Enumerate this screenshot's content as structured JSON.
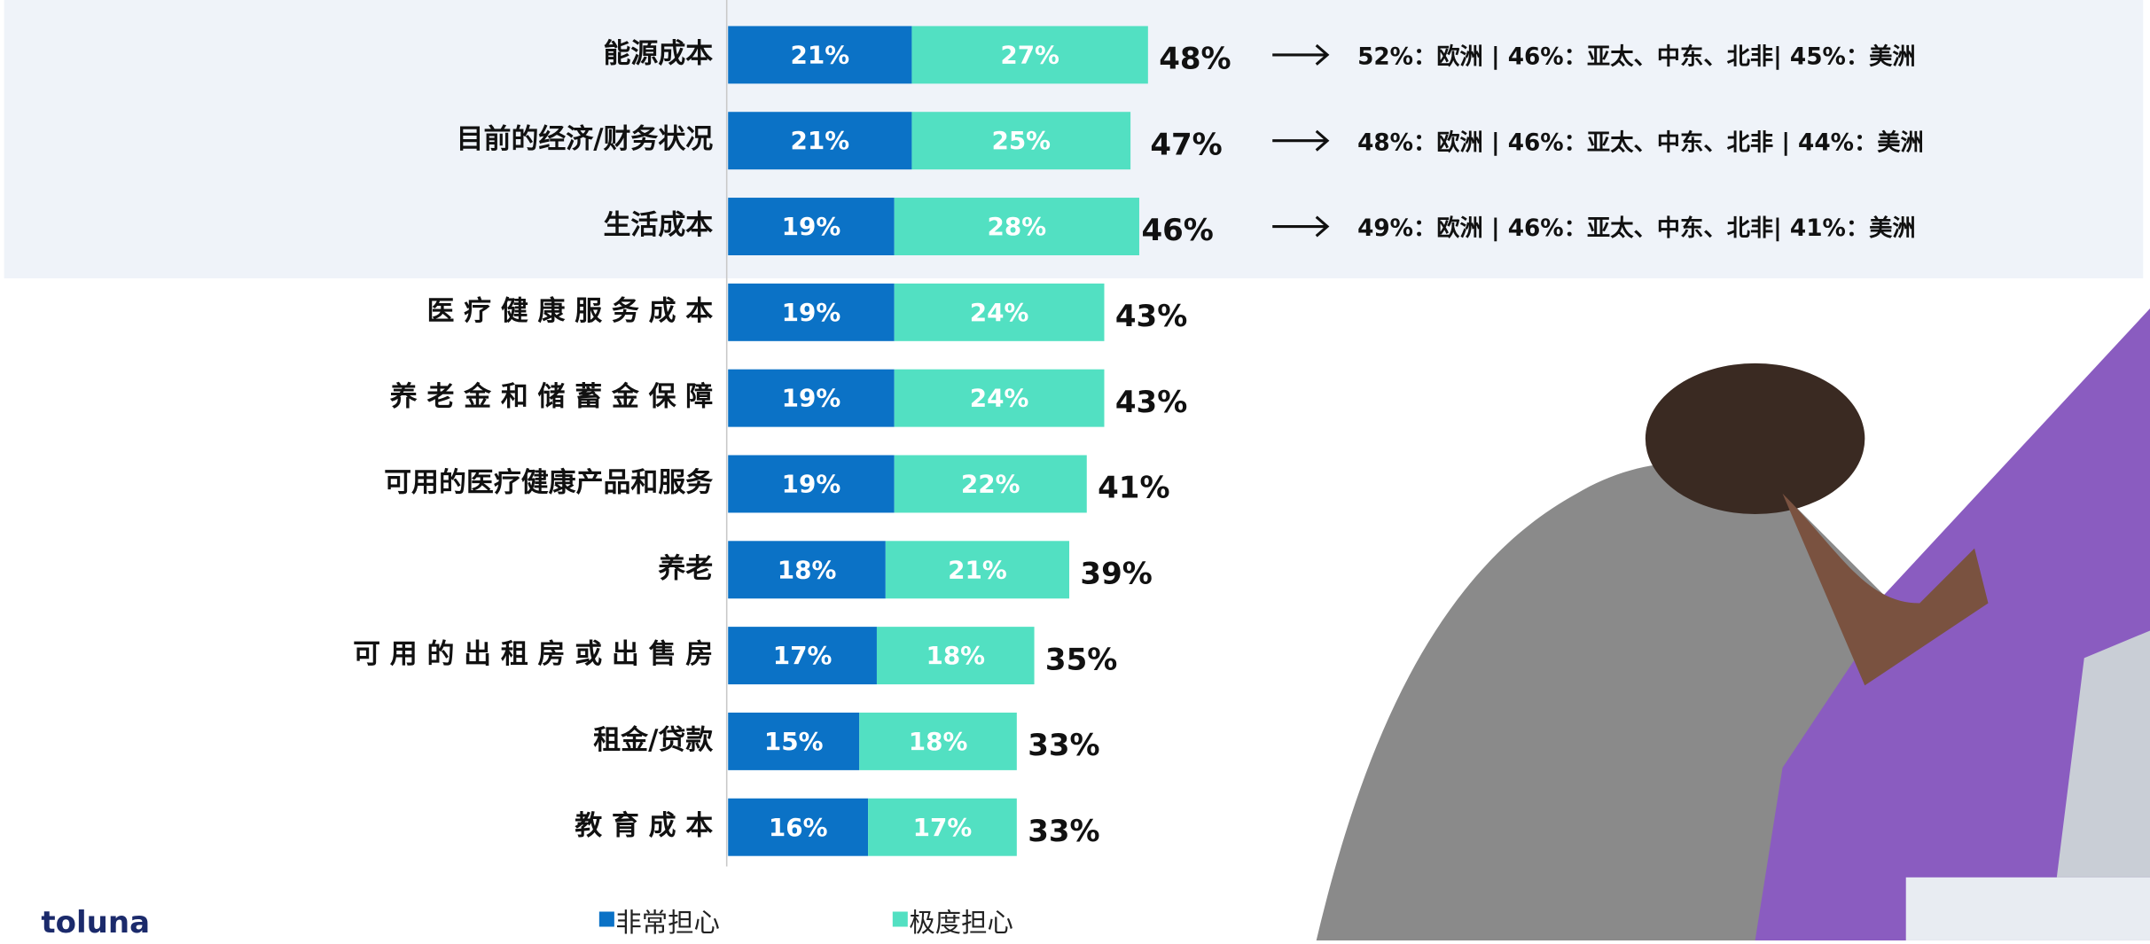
{
  "chart_data": {
    "type": "stacked-bar-horizontal",
    "categories": [
      "能源成本",
      "目前的经济/财务状况",
      "生活成本",
      "医 疗 健 康 服 务 成 本",
      "养 老 金 和 储 蓄 金 保 障",
      "可用的医疗健康产品和服务",
      "养老",
      "可 用 的 出 租 房 或 出 售 房",
      "租金/贷款",
      "教 育 成 本"
    ],
    "series": [
      {
        "name": "非常担心",
        "color": "#0b72c6",
        "values": [
          21,
          21,
          19,
          19,
          19,
          19,
          18,
          17,
          15,
          16
        ],
        "value_labels": [
          "21%",
          "21%",
          "19%",
          "19%",
          "19%",
          "19%",
          "18%",
          "17%",
          "15%",
          "16%"
        ]
      },
      {
        "name": "极度担心",
        "color": "#52e0c2",
        "values": [
          27,
          25,
          28,
          24,
          24,
          22,
          21,
          18,
          18,
          17
        ],
        "value_labels": [
          "27%",
          "25%",
          "28%",
          "24%",
          "24%",
          "22%",
          "21%",
          "18%",
          "18%",
          "17%"
        ]
      }
    ],
    "totals": [
      48,
      47,
      46,
      43,
      43,
      41,
      39,
      35,
      33,
      33
    ],
    "total_labels": [
      "48%",
      "47%",
      "46%",
      "43%",
      "43%",
      "41%",
      "39%",
      "35%",
      "33%",
      "33%"
    ],
    "xlim": [
      0,
      100
    ],
    "annotations": [
      "52%：欧洲 | 46%：亚太、中东、北非| 45%：美洲",
      "48%：欧洲 | 46%：亚太、中东、北非 | 44%：美洲",
      "49%：欧洲 | 46%：亚太、中东、北非| 41%：美洲"
    ],
    "logo": "toluna"
  }
}
